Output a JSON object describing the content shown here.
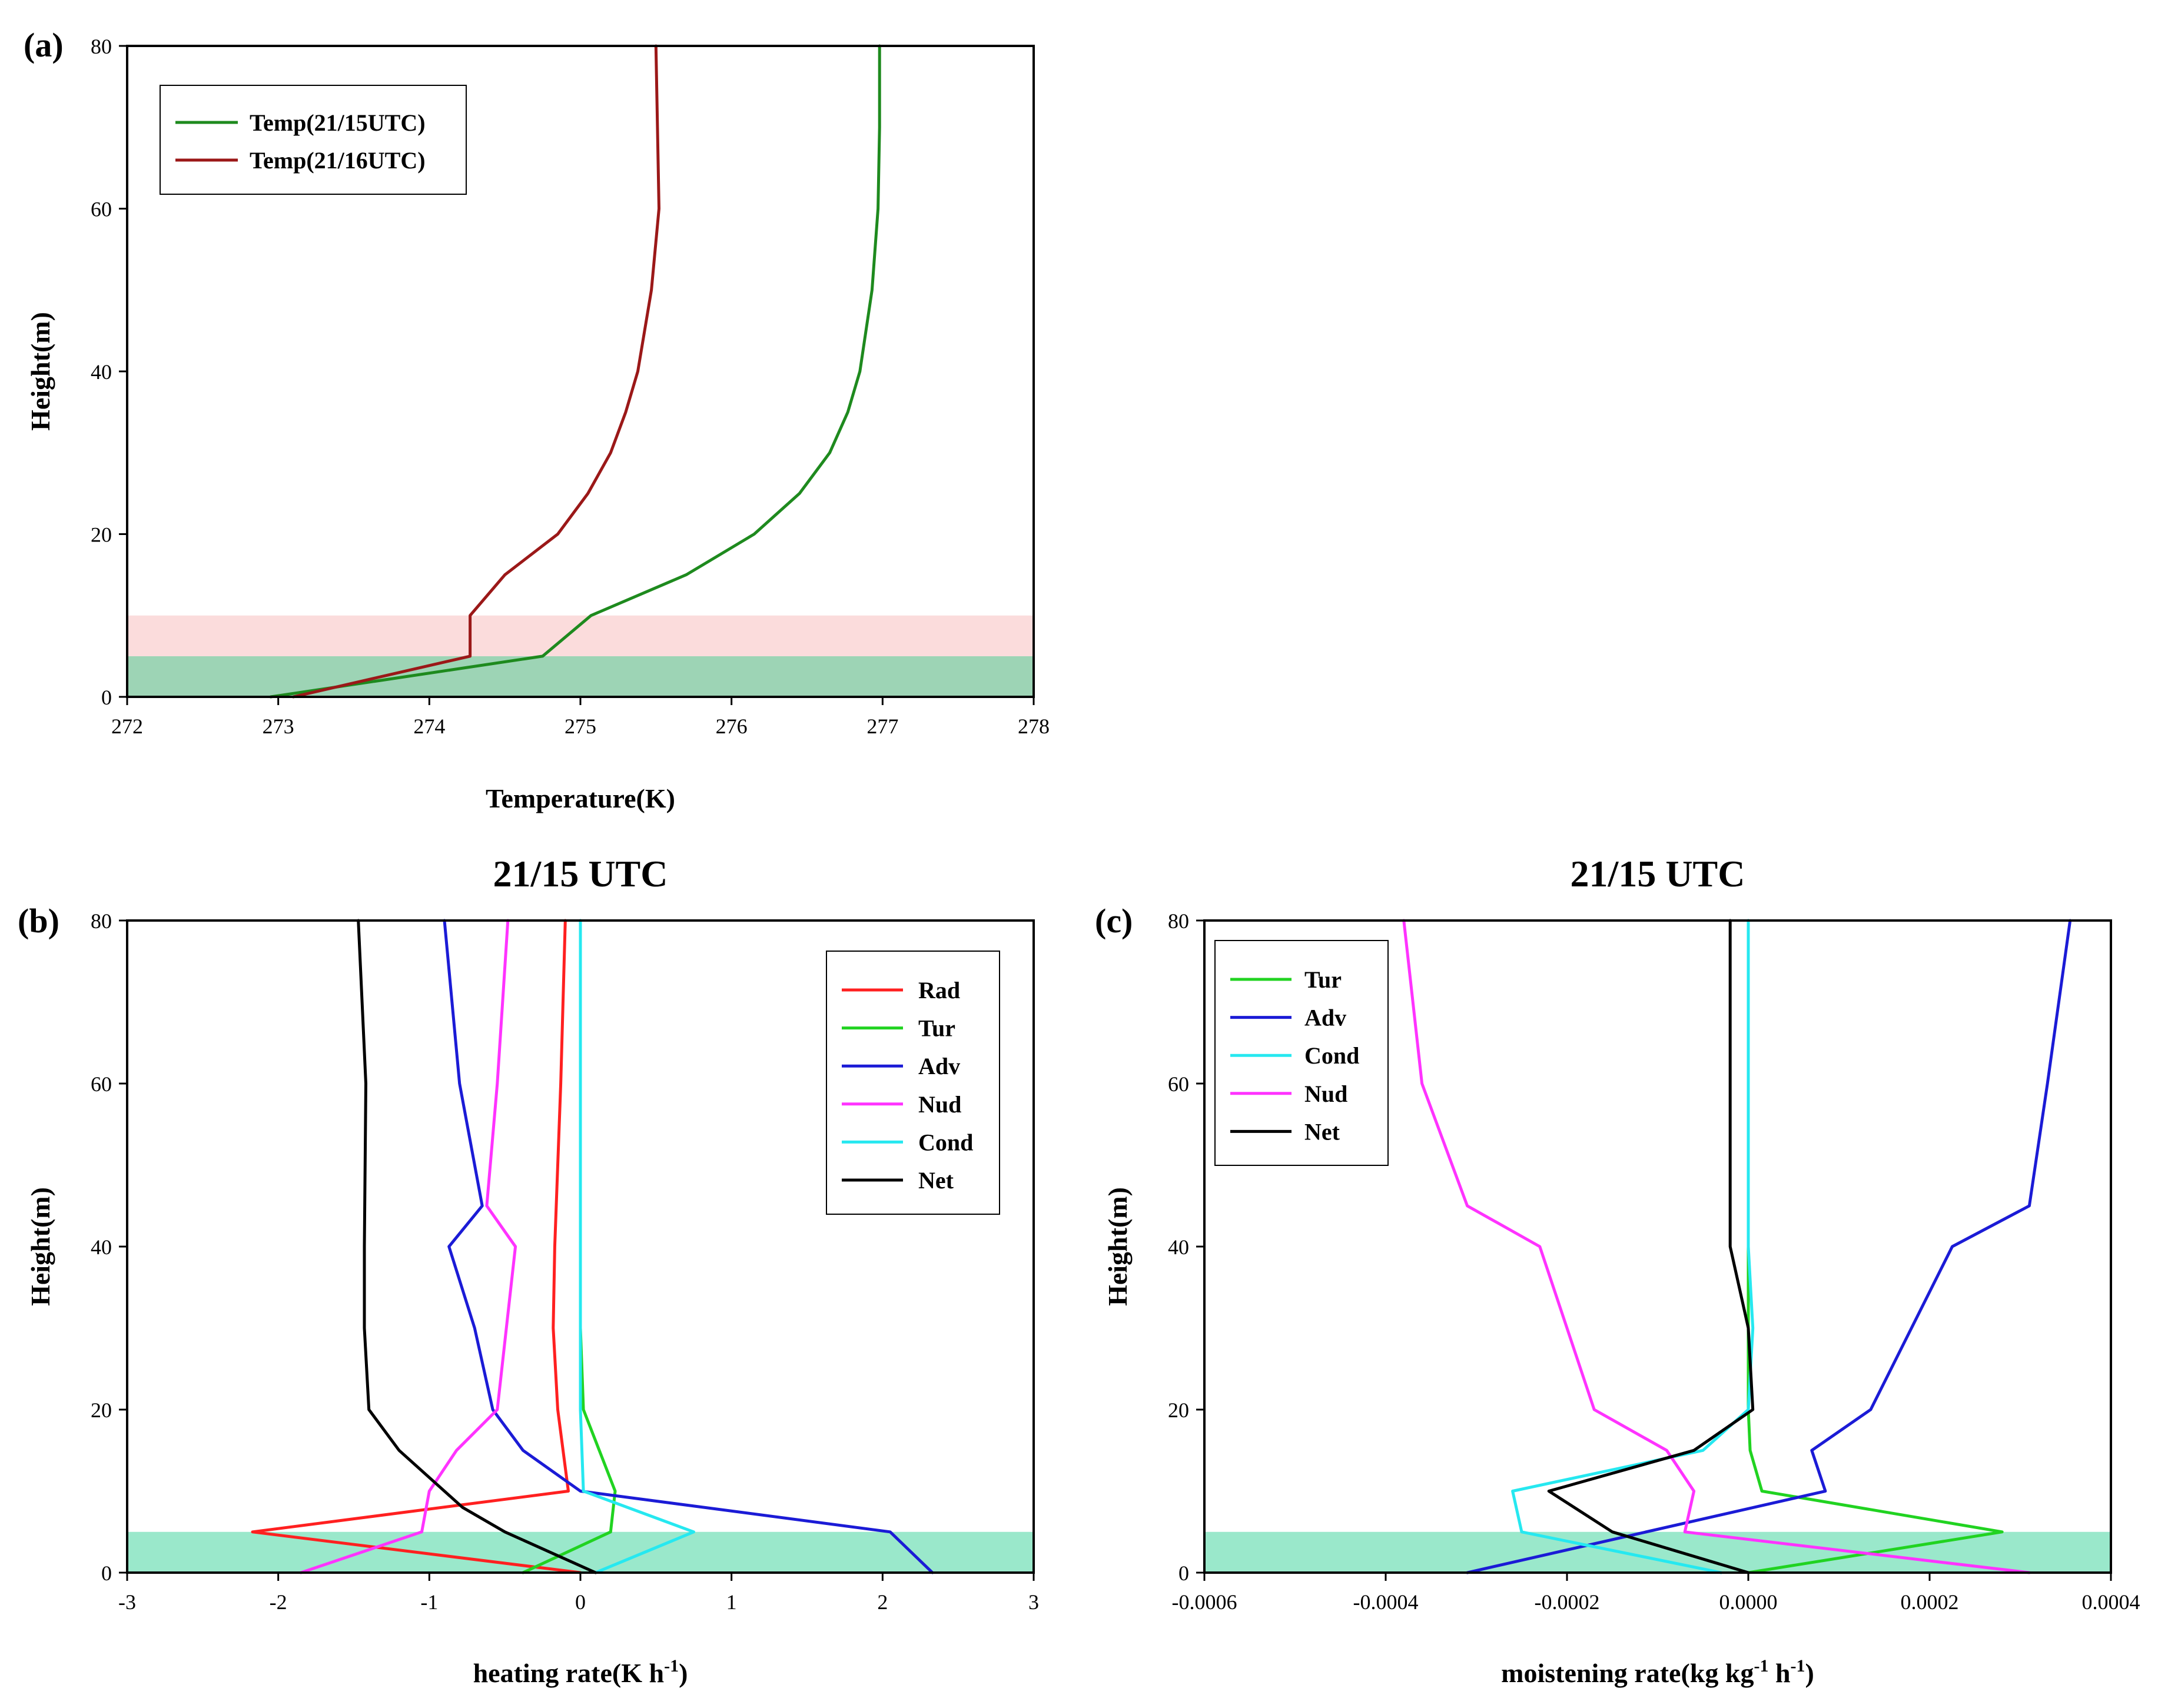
{
  "figure": {
    "panels": [
      "(a)",
      "(b)",
      "(c)"
    ]
  },
  "colors": {
    "band_green_a": "#9dd4b5",
    "band_pink_a": "#fbdcdc",
    "band_green_bc": "#9ae8cb",
    "temp15": "#1e8a1e",
    "temp16": "#9b1818",
    "Rad": "#ff2020",
    "Tur": "#21d321",
    "Adv": "#1b1bd6",
    "Nud": "#ff33ff",
    "Cond": "#26e8f0",
    "Net": "#000000"
  },
  "chart_data": [
    {
      "id": "a",
      "panel_label": "(a)",
      "type": "line",
      "title": "",
      "xlabel": "Temperature(K)",
      "ylabel": "Height(m)",
      "xlim": [
        272,
        278
      ],
      "ylim": [
        0,
        80
      ],
      "xticks": [
        "272",
        "273",
        "274",
        "275",
        "276",
        "277",
        "278"
      ],
      "yticks": [
        "0",
        "20",
        "40",
        "60",
        "80"
      ],
      "legend_position": "top-left",
      "shaded_bands": [
        {
          "y": [
            0,
            5
          ],
          "color": "#9dd4b5"
        },
        {
          "y": [
            5,
            10
          ],
          "color": "#fbdcdc"
        }
      ],
      "series": [
        {
          "name": "Temp(21/15UTC)",
          "color": "#1e8a1e",
          "x": [
            272.95,
            274.75,
            275.07,
            275.7,
            276.15,
            276.45,
            276.65,
            276.77,
            276.85,
            276.93,
            276.97,
            276.98,
            276.98
          ],
          "y": [
            0,
            5,
            10,
            15,
            20,
            25,
            30,
            35,
            40,
            50,
            60,
            70,
            80
          ]
        },
        {
          "name": "Temp(21/16UTC)",
          "color": "#9b1818",
          "x": [
            273.1,
            274.27,
            274.27,
            274.5,
            274.85,
            275.05,
            275.2,
            275.3,
            275.38,
            275.47,
            275.52,
            275.51,
            275.5
          ],
          "y": [
            0,
            5,
            10,
            15,
            20,
            25,
            30,
            35,
            40,
            50,
            60,
            70,
            80
          ]
        }
      ]
    },
    {
      "id": "b",
      "panel_label": "(b)",
      "type": "line",
      "title": "21/15 UTC",
      "xlabel": "heating rate(K h",
      "xlabel_sup": "-1",
      "xlabel_end": ")",
      "ylabel": "Height(m)",
      "xlim": [
        -3,
        3
      ],
      "ylim": [
        0,
        80
      ],
      "xticks": [
        "-3",
        "-2",
        "-1",
        "0",
        "1",
        "2",
        "3"
      ],
      "yticks": [
        "0",
        "20",
        "40",
        "60",
        "80"
      ],
      "legend_position": "top-right",
      "shaded_bands": [
        {
          "y": [
            0,
            5
          ],
          "color": "#9ae8cb"
        }
      ],
      "series": [
        {
          "name": "Rad",
          "color": "#ff2020",
          "x": [
            0.0,
            -2.17,
            -0.08,
            -0.15,
            -0.18,
            -0.17,
            -0.13,
            -0.1
          ],
          "y": [
            0,
            5,
            10,
            20,
            30,
            40,
            60,
            80
          ]
        },
        {
          "name": "Tur",
          "color": "#21d321",
          "x": [
            -0.38,
            0.2,
            0.23,
            0.02,
            0.0,
            0.0,
            0.0,
            0.0
          ],
          "y": [
            0,
            5,
            10,
            20,
            30,
            40,
            60,
            80
          ]
        },
        {
          "name": "Adv",
          "color": "#1b1bd6",
          "x": [
            2.33,
            2.05,
            0.0,
            -0.38,
            -0.58,
            -0.7,
            -0.87,
            -0.65,
            -0.8,
            -0.9
          ],
          "y": [
            0,
            5,
            10,
            15,
            20,
            30,
            40,
            45,
            60,
            80
          ]
        },
        {
          "name": "Nud",
          "color": "#ff33ff",
          "x": [
            -1.85,
            -1.05,
            -1.0,
            -0.82,
            -0.55,
            -0.43,
            -0.62,
            -0.55,
            -0.48
          ],
          "y": [
            0,
            5,
            10,
            15,
            20,
            40,
            45,
            60,
            80
          ]
        },
        {
          "name": "Cond",
          "color": "#26e8f0",
          "x": [
            0.1,
            0.75,
            0.02,
            0.0,
            0.0
          ],
          "y": [
            0,
            5,
            10,
            20,
            80
          ]
        },
        {
          "name": "Net",
          "color": "#000000",
          "x": [
            0.1,
            -0.5,
            -0.78,
            -1.2,
            -1.4,
            -1.43,
            -1.43,
            -1.42,
            -1.47
          ],
          "y": [
            0,
            5,
            8,
            15,
            20,
            30,
            40,
            60,
            80
          ]
        }
      ]
    },
    {
      "id": "c",
      "panel_label": "(c)",
      "type": "line",
      "title": "21/15 UTC",
      "xlabel": "moistening rate(kg kg",
      "xlabel_sup1": "-1",
      "xlabel_mid": " h",
      "xlabel_sup2": "-1",
      "xlabel_end": ")",
      "ylabel": "Height(m)",
      "xlim": [
        -0.0006,
        0.0004
      ],
      "ylim": [
        0,
        80
      ],
      "xticks": [
        "-0.0006",
        "-0.0004",
        "-0.0002",
        "0.0000",
        "0.0002",
        "0.0004"
      ],
      "yticks": [
        "0",
        "20",
        "40",
        "60",
        "80"
      ],
      "legend_position": "top-left",
      "shaded_bands": [
        {
          "y": [
            0,
            5
          ],
          "color": "#9ae8cb"
        }
      ],
      "series": [
        {
          "name": "Tur",
          "color": "#21d321",
          "x": [
            0.0,
            0.00028,
            1.5e-05,
            2e-06,
            0.0,
            0.0,
            0.0
          ],
          "y": [
            0,
            5,
            10,
            15,
            20,
            40,
            80
          ]
        },
        {
          "name": "Adv",
          "color": "#1b1bd6",
          "x": [
            -0.00031,
            8.5e-05,
            7e-05,
            0.000135,
            0.00018,
            0.000225,
            0.00031,
            0.00033,
            0.000355
          ],
          "y": [
            0,
            10,
            15,
            20,
            30,
            40,
            45,
            60,
            80
          ]
        },
        {
          "name": "Cond",
          "color": "#26e8f0",
          "x": [
            -3e-05,
            -0.00025,
            -0.00026,
            -5e-05,
            0.0,
            5e-06,
            0.0,
            0.0
          ],
          "y": [
            0,
            5,
            10,
            15,
            20,
            30,
            40,
            80
          ]
        },
        {
          "name": "Nud",
          "color": "#ff33ff",
          "x": [
            0.00031,
            -7e-05,
            -6e-05,
            -9e-05,
            -0.00017,
            -0.00023,
            -0.00031,
            -0.00036,
            -0.00038
          ],
          "y": [
            0,
            5,
            10,
            15,
            20,
            40,
            45,
            60,
            80
          ]
        },
        {
          "name": "Net",
          "color": "#000000",
          "x": [
            0.0,
            -0.00015,
            -0.00022,
            -6e-05,
            5e-06,
            0.0,
            -2e-05,
            -2e-05,
            -2e-05
          ],
          "y": [
            0,
            5,
            10,
            15,
            20,
            30,
            40,
            60,
            80
          ]
        }
      ]
    }
  ]
}
